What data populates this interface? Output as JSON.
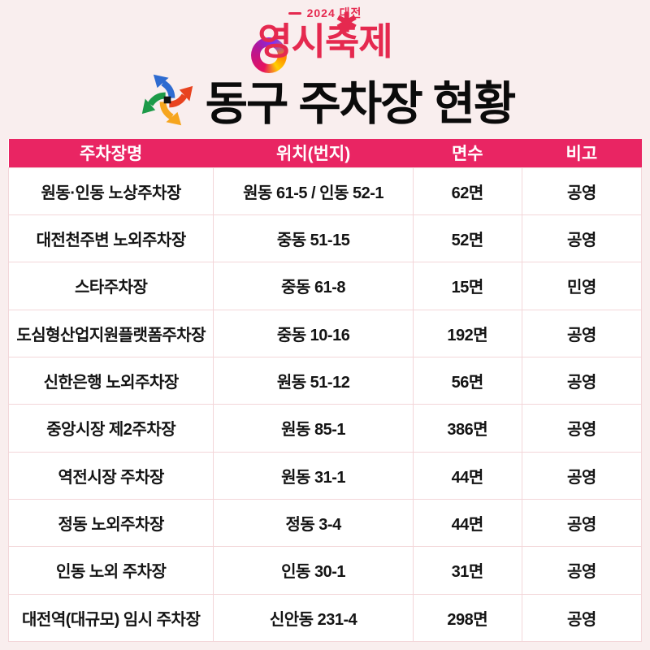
{
  "logo": {
    "year_city": "2024 대전",
    "festival_name": "영시축제",
    "asterisk_glyph": "✱"
  },
  "title": "동구 주차장 현황",
  "table": {
    "headers": [
      "주차장명",
      "위치(번지)",
      "면수",
      "비고"
    ],
    "rows": [
      [
        "원동·인동 노상주차장",
        "원동 61-5 / 인동 52-1",
        "62면",
        "공영"
      ],
      [
        "대전천주변 노외주차장",
        "중동 51-15",
        "52면",
        "공영"
      ],
      [
        "스타주차장",
        "중동 61-8",
        "15면",
        "민영"
      ],
      [
        "도심형산업지원플랫폼주차장",
        "중동 10-16",
        "192면",
        "공영"
      ],
      [
        "신한은행 노외주차장",
        "원동 51-12",
        "56면",
        "공영"
      ],
      [
        "중앙시장 제2주차장",
        "원동 85-1",
        "386면",
        "공영"
      ],
      [
        "역전시장 주차장",
        "원동 31-1",
        "44면",
        "공영"
      ],
      [
        "정동 노외주차장",
        "정동 3-4",
        "44면",
        "공영"
      ],
      [
        "인동 노외 주차장",
        "인동 30-1",
        "31면",
        "공영"
      ],
      [
        "대전역(대규모) 임시 주차장",
        "신안동 231-4",
        "298면",
        "공영"
      ]
    ]
  },
  "colors": {
    "page_bg": "#F9EEEE",
    "header_bg": "#E92563",
    "header_text": "#FFFFFF",
    "cell_bg": "#FFFFFF",
    "cell_text": "#141414",
    "cell_border": "#F3D6D9",
    "title_color": "#0B0B0B",
    "logo_red": "#E5294F",
    "pinwheel_blue": "#2E6BD0",
    "pinwheel_red": "#E8431F",
    "pinwheel_green": "#1D9A48",
    "pinwheel_orange": "#F6A51E",
    "pinwheel_center": "#111111"
  }
}
